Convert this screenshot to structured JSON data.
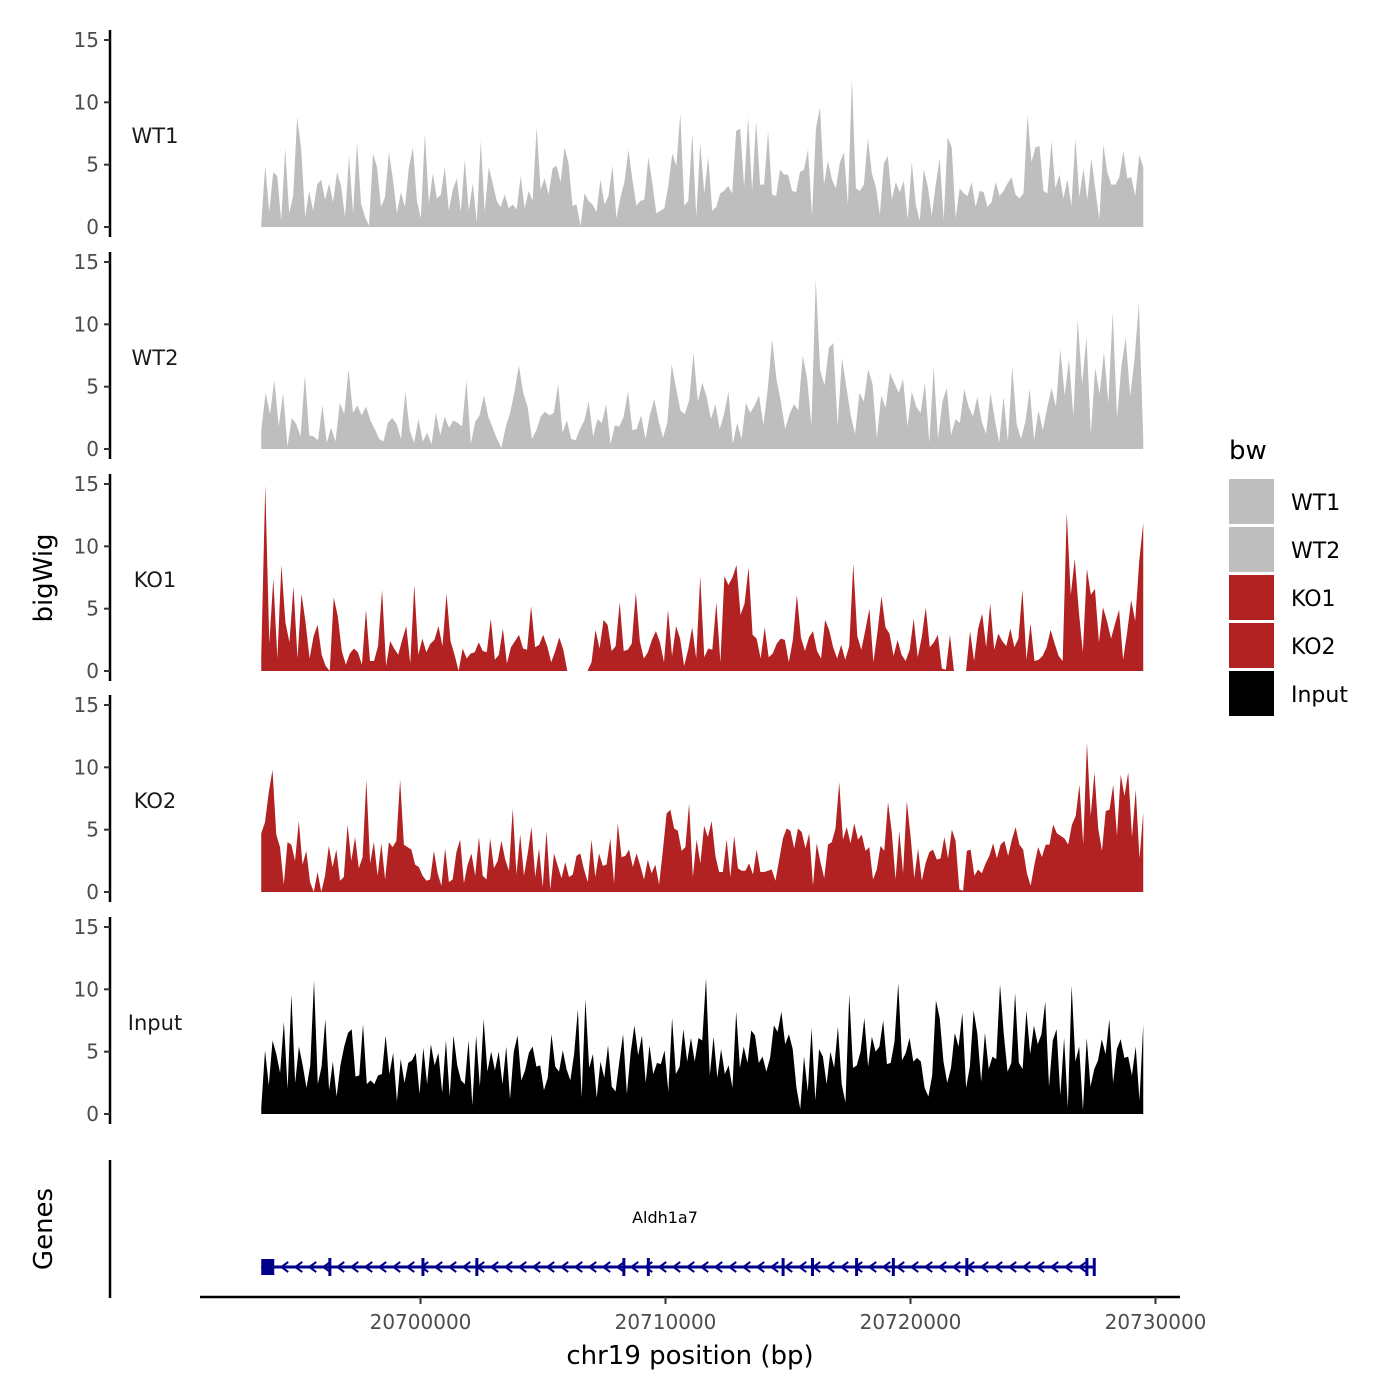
{
  "chart_data": {
    "type": "area",
    "title": "",
    "ylabel": "bigWig",
    "xlabel": "chr19 position (bp)",
    "chromosome": "chr19",
    "xlim": [
      20691000,
      20731000
    ],
    "data_range": [
      20693500,
      20729500
    ],
    "ylim": [
      0,
      15
    ],
    "y_ticks": [
      0,
      5,
      10,
      15
    ],
    "x_ticks": [
      20700000,
      20710000,
      20720000,
      20730000
    ],
    "x_tick_labels": [
      "20700000",
      "20710000",
      "20720000",
      "20730000"
    ],
    "genes_track_label": "Genes",
    "legend": {
      "title": "bw",
      "entries": [
        {
          "label": "WT1",
          "color": "#BEBEBE"
        },
        {
          "label": "WT2",
          "color": "#BEBEBE"
        },
        {
          "label": "KO1",
          "color": "#B22222"
        },
        {
          "label": "KO2",
          "color": "#B22222"
        },
        {
          "label": "Input",
          "color": "#000000"
        }
      ]
    },
    "series": [
      {
        "name": "WT1",
        "color": "#BEBEBE",
        "values": [
          0.3,
          4.9,
          1.2,
          4.4,
          4.1,
          0.5,
          6.3,
          1.1,
          2.5,
          8.8,
          6.3,
          0.8,
          2.9,
          1.3,
          3.4,
          3.8,
          2.2,
          3.5,
          2.0,
          4.4,
          3.3,
          0.8,
          5.7,
          1.1,
          6.8,
          1.9,
          0.8,
          0.1,
          5.9,
          4.8,
          1.6,
          2.4,
          6.0,
          3.8,
          1.1,
          2.8,
          1.6,
          4.8,
          6.4,
          2.1,
          0.7,
          7.5,
          1.9,
          4.3,
          2.3,
          2.6,
          4.8,
          1.3,
          3.0,
          3.9,
          1.2,
          5.4,
          1.3,
          3.5,
          0.4,
          6.9,
          1.2,
          4.8,
          3.5,
          2.1,
          1.6,
          2.6,
          1.5,
          1.8,
          1.4,
          4.1,
          1.5,
          2.9,
          2.1,
          8.0,
          3.0,
          3.9,
          2.6,
          4.7,
          4.9,
          3.6,
          6.4,
          5.1,
          1.7,
          1.8,
          0.1,
          2.7,
          2.1,
          1.8,
          1.2,
          3.8,
          1.8,
          2.5,
          4.9,
          0.7,
          2.4,
          3.6,
          6.2,
          3.8,
          1.7,
          2.1,
          2.2,
          5.6,
          3.5,
          1.1,
          1.3,
          1.5,
          3.3,
          5.9,
          4.9,
          9.1,
          1.7,
          2.1,
          7.5,
          0.8,
          6.7,
          2.7,
          5.6,
          1.3,
          1.6,
          2.7,
          2.9,
          3.3,
          2.7,
          7.7,
          7.9,
          3.2,
          8.8,
          2.9,
          8.5,
          3.4,
          3.4,
          7.7,
          2.6,
          2.5,
          4.6,
          4.2,
          4.2,
          2.9,
          2.8,
          4.4,
          4.6,
          6.2,
          0.9,
          7.9,
          9.6,
          3.4,
          5.3,
          3.8,
          3.1,
          5.2,
          6.0,
          1.8,
          11.9,
          3.1,
          2.9,
          3.4,
          7.1,
          4.3,
          3.2,
          1.0,
          5.1,
          5.7,
          2.2,
          3.6,
          2.8,
          3.7,
          0.6,
          5.2,
          1.8,
          0.5,
          4.6,
          3.3,
          0.9,
          3.4,
          5.5,
          0.6,
          7.2,
          6.4,
          0.7,
          3.1,
          2.7,
          2.5,
          3.6,
          1.6,
          2.9,
          2.8,
          1.6,
          2.0,
          3.6,
          2.5,
          2.9,
          3.5,
          4.0,
          2.6,
          2.3,
          2.7,
          9.0,
          5.2,
          6.4,
          6.5,
          2.9,
          2.7,
          6.9,
          3.1,
          4.2,
          2.3,
          3.8,
          1.7,
          7.1,
          2.4,
          4.7,
          2.2,
          5.5,
          3.0,
          0.6,
          6.6,
          4.4,
          3.4,
          3.4,
          4.0,
          6.1,
          3.9,
          4.0,
          2.5,
          5.8,
          4.8
        ]
      },
      {
        "name": "WT2",
        "color": "#BEBEBE",
        "values": [
          1.5,
          4.5,
          2.8,
          5.5,
          1.8,
          4.5,
          0.2,
          2.5,
          2.0,
          1.0,
          5.9,
          1.1,
          1.0,
          0.7,
          3.5,
          0.5,
          1.7,
          0.6,
          3.7,
          2.8,
          6.4,
          2.9,
          3.5,
          2.7,
          3.4,
          2.3,
          1.6,
          0.8,
          0.6,
          2.1,
          2.5,
          2.0,
          0.8,
          4.6,
          1.5,
          0.5,
          2.4,
          0.6,
          1.3,
          0.4,
          2.9,
          1.1,
          2.6,
          1.7,
          2.3,
          2.1,
          1.8,
          5.5,
          0.4,
          2.2,
          2.7,
          4.3,
          2.6,
          1.7,
          0.8,
          0.1,
          1.8,
          2.9,
          4.6,
          6.7,
          4.5,
          3.4,
          0.8,
          1.5,
          2.6,
          3.0,
          2.7,
          2.9,
          5.2,
          1.3,
          2.3,
          0.8,
          0.7,
          1.6,
          2.3,
          3.8,
          1.0,
          2.4,
          2.1,
          3.6,
          0.4,
          1.9,
          1.8,
          2.6,
          4.6,
          1.5,
          1.6,
          2.7,
          0.8,
          2.7,
          4.0,
          2.3,
          0.9,
          2.1,
          6.8,
          4.9,
          3.1,
          2.8,
          3.9,
          7.7,
          3.8,
          5.3,
          4.2,
          2.4,
          3.6,
          1.6,
          2.8,
          4.6,
          0.4,
          2.1,
          0.8,
          3.7,
          2.9,
          3.5,
          4.3,
          1.9,
          4.8,
          8.8,
          5.6,
          3.8,
          1.6,
          2.8,
          3.6,
          3.1,
          7.5,
          5.7,
          1.9,
          13.6,
          6.3,
          5.1,
          8.1,
          8.5,
          1.8,
          7.3,
          5.0,
          2.7,
          1.2,
          4.5,
          3.8,
          6.4,
          5.2,
          0.9,
          4.3,
          3.3,
          6.1,
          5.3,
          4.5,
          5.6,
          1.8,
          4.6,
          3.4,
          2.9,
          5.3,
          0.5,
          6.6,
          0.8,
          3.8,
          4.9,
          1.1,
          2.4,
          2.1,
          4.8,
          3.4,
          2.6,
          4.2,
          2.2,
          1.2,
          4.5,
          2.4,
          0.5,
          4.2,
          0.6,
          6.6,
          2.0,
          0.8,
          2.2,
          4.8,
          0.7,
          3.1,
          1.5,
          3.3,
          4.9,
          3.4,
          8.0,
          4.3,
          7.2,
          2.6,
          10.4,
          5.2,
          9.0,
          1.2,
          6.5,
          4.4,
          7.8,
          3.7,
          11.0,
          2.5,
          6.7,
          8.9,
          4.2,
          7.2,
          11.7,
          0.8
        ]
      },
      {
        "name": "KO1",
        "color": "#B22222",
        "values": [
          1.2,
          14.9,
          2.2,
          7.4,
          1.0,
          8.5,
          3.9,
          2.3,
          6.8,
          1.0,
          6.2,
          3.9,
          1.0,
          2.8,
          3.7,
          1.3,
          0.4,
          0.0,
          5.9,
          4.4,
          1.6,
          0.5,
          1.4,
          1.8,
          1.5,
          0.5,
          4.9,
          0.8,
          0.8,
          2.0,
          6.5,
          0.4,
          2.4,
          1.8,
          1.3,
          2.5,
          3.6,
          0.6,
          6.9,
          1.3,
          2.6,
          1.5,
          2.2,
          2.5,
          3.6,
          2.0,
          6.2,
          2.4,
          1.3,
          0.0,
          1.8,
          1.0,
          1.4,
          1.5,
          2.3,
          1.6,
          1.5,
          4.2,
          0.9,
          1.3,
          3.4,
          0.6,
          1.9,
          2.4,
          2.9,
          1.8,
          1.7,
          5.2,
          1.9,
          2.1,
          2.9,
          2.0,
          0.7,
          1.6,
          2.7,
          1.7,
          0.0,
          0.0,
          0.0,
          0.0,
          0.0,
          0.0,
          0.7,
          3.3,
          1.8,
          4.1,
          3.7,
          1.6,
          2.0,
          5.5,
          1.6,
          1.7,
          2.2,
          6.3,
          2.4,
          1.0,
          1.5,
          2.5,
          3.2,
          2.3,
          0.7,
          4.9,
          1.2,
          3.6,
          2.6,
          0.4,
          1.7,
          3.5,
          1.0,
          7.6,
          1.1,
          1.8,
          1.7,
          5.5,
          0.7,
          7.6,
          6.9,
          7.5,
          8.5,
          4.5,
          5.4,
          8.3,
          2.9,
          2.6,
          1.0,
          3.5,
          1.1,
          1.4,
          2.2,
          2.6,
          2.5,
          0.7,
          2.5,
          6.1,
          2.7,
          1.6,
          2.7,
          3.2,
          1.6,
          1.0,
          4.1,
          3.3,
          1.9,
          1.0,
          2.1,
          0.9,
          2.0,
          8.6,
          2.8,
          1.7,
          3.3,
          5.0,
          0.7,
          3.1,
          6.0,
          3.5,
          3.0,
          1.2,
          2.5,
          1.3,
          0.8,
          1.7,
          4.2,
          1.1,
          2.7,
          5.1,
          1.9,
          2.3,
          2.9,
          0.2,
          0.1,
          2.9,
          0.0,
          0.0,
          0.0,
          0.0,
          3.2,
          0.8,
          3.4,
          4.6,
          1.9,
          5.4,
          1.7,
          3.0,
          2.4,
          2.0,
          3.4,
          1.9,
          2.6,
          6.5,
          0.9,
          3.8,
          0.8,
          0.9,
          1.2,
          1.9,
          3.3,
          2.2,
          1.2,
          0.8,
          12.7,
          6.1,
          9.0,
          4.8,
          1.5,
          8.2,
          6.1,
          6.6,
          2.3,
          5.1,
          4.0,
          2.6,
          3.8,
          4.9,
          0.9,
          3.1,
          5.7,
          4.0,
          8.8,
          11.9
        ]
      },
      {
        "name": "KO2",
        "color": "#B22222",
        "values": [
          4.7,
          5.6,
          8.0,
          9.8,
          4.6,
          3.6,
          0.6,
          4.0,
          3.8,
          2.5,
          5.7,
          2.2,
          3.3,
          0.8,
          0.0,
          1.6,
          0.0,
          1.3,
          3.7,
          2.0,
          3.4,
          0.9,
          1.2,
          5.4,
          2.5,
          4.4,
          1.9,
          2.8,
          9.0,
          2.3,
          4.0,
          1.3,
          3.9,
          1.0,
          4.0,
          3.6,
          4.1,
          9.0,
          3.8,
          3.6,
          3.4,
          2.2,
          2.0,
          1.3,
          0.9,
          1.0,
          3.3,
          1.5,
          0.5,
          3.5,
          0.8,
          1.0,
          3.2,
          4.2,
          0.7,
          2.2,
          3.1,
          1.3,
          4.4,
          1.3,
          1.0,
          4.3,
          1.9,
          2.5,
          4.1,
          2.6,
          1.7,
          6.7,
          1.4,
          4.6,
          1.3,
          3.1,
          5.2,
          1.2,
          3.5,
          0.4,
          4.9,
          0.2,
          3.1,
          2.1,
          1.1,
          2.4,
          1.2,
          1.4,
          2.9,
          3.1,
          1.8,
          0.8,
          4.2,
          1.2,
          3.1,
          2.1,
          2.2,
          4.3,
          0.7,
          5.5,
          2.8,
          2.9,
          3.4,
          2.0,
          3.1,
          2.1,
          1.0,
          2.6,
          1.5,
          2.2,
          0.6,
          3.3,
          6.3,
          6.6,
          5.1,
          4.9,
          3.3,
          3.6,
          7.1,
          1.2,
          4.2,
          2.3,
          5.3,
          4.4,
          5.7,
          2.9,
          1.6,
          1.6,
          4.2,
          1.2,
          4.5,
          1.9,
          1.7,
          1.7,
          2.3,
          1.4,
          3.4,
          1.6,
          1.6,
          1.7,
          1.8,
          0.9,
          2.6,
          4.3,
          5.1,
          4.9,
          3.5,
          5.1,
          4.8,
          3.5,
          4.7,
          0.5,
          3.9,
          2.4,
          1.1,
          3.8,
          4.0,
          5.1,
          8.8,
          4.2,
          5.2,
          3.9,
          5.5,
          4.2,
          4.6,
          3.3,
          3.6,
          1.0,
          1.8,
          3.7,
          3.3,
          7.2,
          4.8,
          1.0,
          4.9,
          1.5,
          7.3,
          4.5,
          1.1,
          3.5,
          0.9,
          2.3,
          3.2,
          3.4,
          2.6,
          2.7,
          4.4,
          2.7,
          5.0,
          4.1,
          0.2,
          0.1,
          3.3,
          3.4,
          1.3,
          1.8,
          1.5,
          2.3,
          2.9,
          3.9,
          2.7,
          3.8,
          4.1,
          2.9,
          4.2,
          5.2,
          3.8,
          3.4,
          1.5,
          0.5,
          2.2,
          3.6,
          2.8,
          3.8,
          3.8,
          5.4,
          4.7,
          4.5,
          4.3,
          3.8,
          5.4,
          6.1,
          8.6,
          3.8,
          12.0,
          6.1,
          9.6,
          5.1,
          3.3,
          6.5,
          6.6,
          8.6,
          4.5,
          9.4,
          7.7,
          9.6,
          4.4,
          8.2,
          2.7,
          6.4
        ]
      },
      {
        "name": "Input",
        "color": "#000000",
        "values": [
          0.5,
          5.1,
          2.3,
          5.9,
          4.8,
          3.3,
          7.4,
          2.0,
          9.6,
          2.5,
          5.4,
          3.9,
          2.1,
          3.9,
          10.7,
          2.4,
          3.8,
          7.6,
          1.9,
          4.2,
          1.4,
          3.9,
          5.4,
          6.5,
          6.8,
          3.0,
          3.1,
          7.2,
          2.4,
          2.7,
          2.4,
          3.1,
          3.2,
          6.3,
          3.2,
          4.9,
          1.0,
          4.4,
          2.5,
          4.1,
          4.3,
          4.9,
          1.6,
          5.3,
          2.4,
          5.6,
          3.9,
          4.9,
          1.7,
          5.9,
          1.4,
          6.3,
          3.9,
          2.7,
          2.4,
          5.9,
          0.7,
          6.3,
          2.2,
          7.6,
          3.4,
          5.0,
          3.5,
          5.0,
          2.4,
          5.4,
          1.2,
          5.0,
          6.3,
          2.7,
          3.5,
          4.9,
          5.4,
          3.8,
          3.9,
          1.9,
          2.9,
          6.4,
          3.8,
          3.4,
          5.1,
          3.6,
          2.7,
          4.8,
          8.4,
          1.3,
          9.2,
          3.7,
          4.8,
          1.3,
          4.2,
          2.9,
          5.5,
          2.2,
          1.8,
          4.2,
          6.4,
          1.6,
          4.9,
          7.1,
          4.7,
          6.3,
          2.5,
          5.5,
          3.2,
          4.1,
          4.0,
          5.1,
          1.8,
          7.7,
          3.2,
          3.8,
          6.8,
          4.2,
          6.1,
          4.2,
          6.1,
          5.9,
          10.9,
          3.1,
          6.2,
          2.9,
          5.2,
          3.2,
          3.9,
          2.1,
          8.2,
          3.7,
          5.4,
          4.1,
          6.7,
          6.3,
          4.1,
          4.6,
          3.4,
          4.5,
          7.1,
          6.6,
          8.2,
          5.6,
          6.4,
          5.2,
          2.1,
          0.4,
          4.6,
          1.8,
          6.9,
          1.1,
          5.2,
          4.6,
          2.4,
          5.0,
          3.7,
          7.0,
          2.4,
          0.9,
          9.6,
          3.7,
          3.9,
          5.0,
          7.7,
          3.8,
          6.2,
          5.0,
          5.4,
          7.5,
          4.0,
          4.1,
          5.8,
          10.5,
          4.3,
          4.9,
          6.1,
          4.2,
          4.5,
          4.2,
          2.1,
          1.4,
          3.1,
          9.1,
          7.7,
          4.2,
          2.5,
          3.7,
          6.5,
          5.4,
          8.1,
          2.1,
          3.8,
          8.3,
          6.4,
          2.6,
          6.5,
          3.6,
          4.6,
          4.4,
          10.4,
          6.4,
          3.4,
          4.1,
          9.7,
          4.1,
          3.6,
          8.3,
          4.8,
          7.1,
          5.6,
          6.4,
          9.0,
          2.2,
          5.9,
          6.8,
          1.5,
          6.1,
          0.5,
          10.3,
          4.2,
          5.4,
          0.3,
          6.1,
          2.2,
          3.6,
          4.3,
          6.0,
          4.8,
          7.6,
          2.5,
          5.2,
          6.0,
          4.5,
          4.6,
          3.1,
          5.4,
          1.1,
          7.2
        ]
      }
    ],
    "gene": {
      "name": "Aldh1a7",
      "strand": "-",
      "start": 20693500,
      "end": 20727500,
      "color": "#00008B",
      "exon_positions": [
        20693500,
        20696300,
        20700100,
        20702300,
        20708300,
        20709300,
        20714800,
        20716000,
        20717800,
        20719300,
        20722300,
        20727200,
        20727500
      ]
    }
  }
}
